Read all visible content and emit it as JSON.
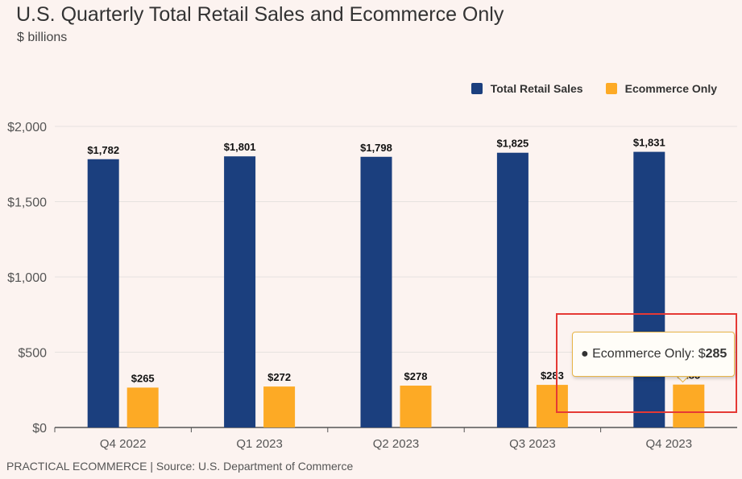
{
  "chart_data": {
    "type": "bar",
    "title": "U.S. Quarterly Total Retail Sales and Ecommerce Only",
    "subtitle": "$ billions",
    "categories": [
      "Q4 2022",
      "Q1 2023",
      "Q2 2023",
      "Q3 2023",
      "Q4 2023"
    ],
    "series": [
      {
        "name": "Total Retail Sales",
        "color": "#1b3f7e",
        "values": [
          1782,
          1801,
          1798,
          1825,
          1831
        ]
      },
      {
        "name": "Ecommerce Only",
        "color": "#fdaa25",
        "values": [
          265,
          272,
          278,
          283,
          285
        ]
      }
    ],
    "ylim": [
      0,
      2000
    ],
    "yticks": [
      0,
      500,
      1000,
      1500,
      2000
    ],
    "ytick_labels": [
      "$0",
      "$500",
      "$1,000",
      "$1,500",
      "$2,000"
    ],
    "data_labels": [
      [
        "$1,782",
        "$1,801",
        "$1,798",
        "$1,825",
        "$1,831"
      ],
      [
        "$265",
        "$272",
        "$278",
        "$283",
        "$285"
      ]
    ],
    "grid": true,
    "legend_position": "top-right"
  },
  "legend": {
    "items": [
      {
        "label": "Total Retail Sales",
        "color": "#1b3f7e"
      },
      {
        "label": "Ecommerce Only",
        "color": "#fdaa25"
      }
    ]
  },
  "tooltip": {
    "bullet": "●",
    "series_label": "Ecommerce Only: $",
    "value": "285"
  },
  "footer": "PRACTICAL ECOMMERCE | Source: U.S. Department of Commerce"
}
